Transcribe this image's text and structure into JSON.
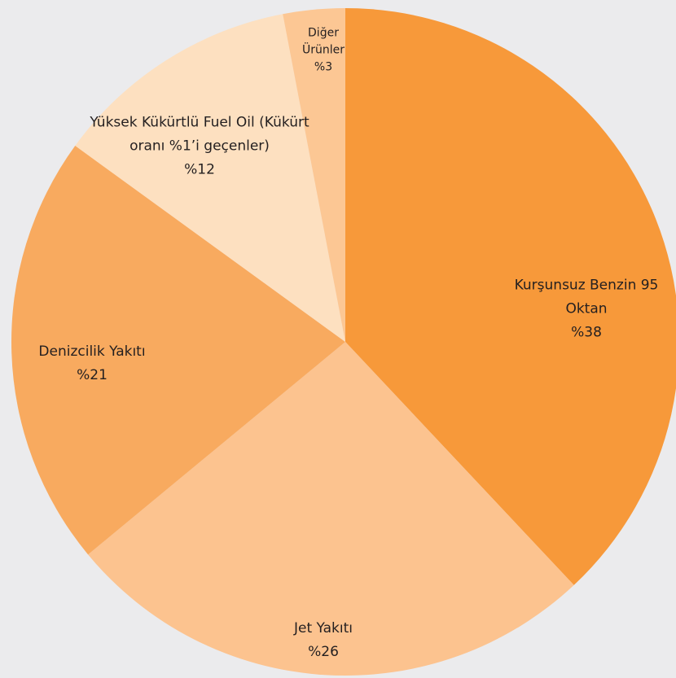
{
  "chart_data": {
    "type": "pie",
    "categories": [
      "Kurşunsuz Benzin 95 Oktan",
      "Jet Yakıtı",
      "Denizcilik Yakıtı",
      "Yüksek Kükürtlü Fuel Oil (Kükürt oranı %1’i geçenler)",
      "Diğer Ürünler"
    ],
    "values": [
      38,
      26,
      21,
      12,
      3
    ],
    "value_labels": [
      "%38",
      "%26",
      "%21",
      "%12",
      "%3"
    ],
    "colors": [
      "#f7993a",
      "#fcc38f",
      "#f8aa5f",
      "#fde0c0",
      "#fcc794"
    ]
  }
}
